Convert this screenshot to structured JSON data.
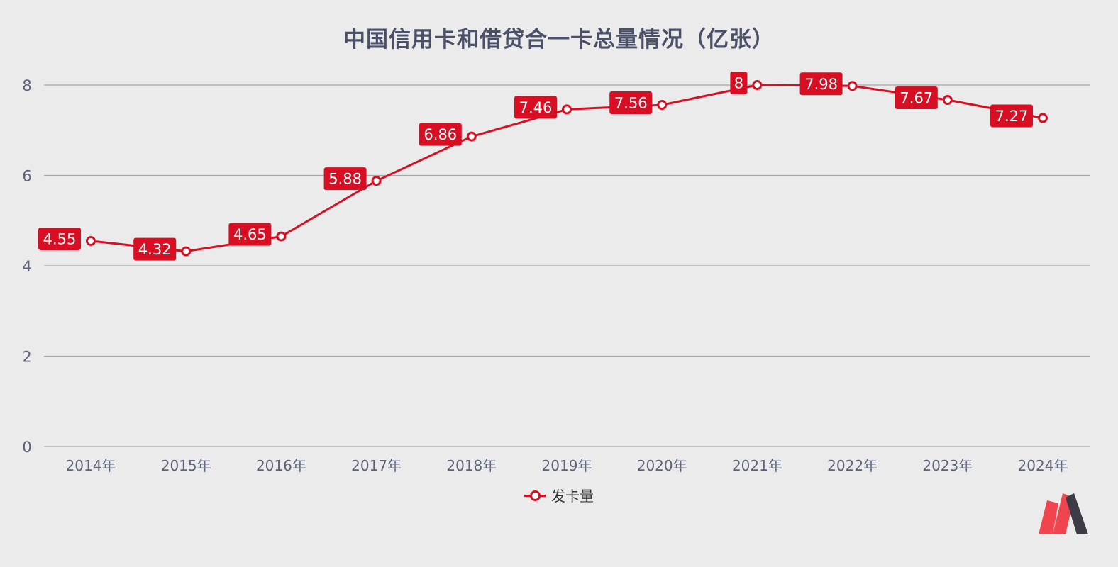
{
  "chart_data": {
    "type": "line",
    "title": "中国信用卡和借贷合一卡总量情况（亿张）",
    "categories": [
      "2014年",
      "2015年",
      "2016年",
      "2017年",
      "2018年",
      "2019年",
      "2020年",
      "2021年",
      "2022年",
      "2023年",
      "2024年"
    ],
    "series": [
      {
        "name": "发卡量",
        "values": [
          4.55,
          4.32,
          4.65,
          5.88,
          6.86,
          7.46,
          7.56,
          8,
          7.98,
          7.67,
          7.27
        ],
        "labels": [
          "4.55",
          "4.32",
          "4.65",
          "5.88",
          "6.86",
          "7.46",
          "7.56",
          "8",
          "7.98",
          "7.67",
          "7.27"
        ]
      }
    ],
    "y_ticks": [
      "0",
      "2",
      "4",
      "6",
      "8"
    ],
    "ylim": [
      0,
      8
    ],
    "grid": "horizontal",
    "legend_position": "bottom-center",
    "colors": {
      "line": "#d80f23",
      "label_bg": "#d80f23",
      "grid": "#a6a6a6",
      "axis_text": "#5c6378",
      "title": "#4a5068",
      "background": "#ebebeb"
    }
  },
  "logo": {
    "icon": "brand-m-icon",
    "colors": [
      "#f0454f",
      "#3c3c46"
    ]
  }
}
